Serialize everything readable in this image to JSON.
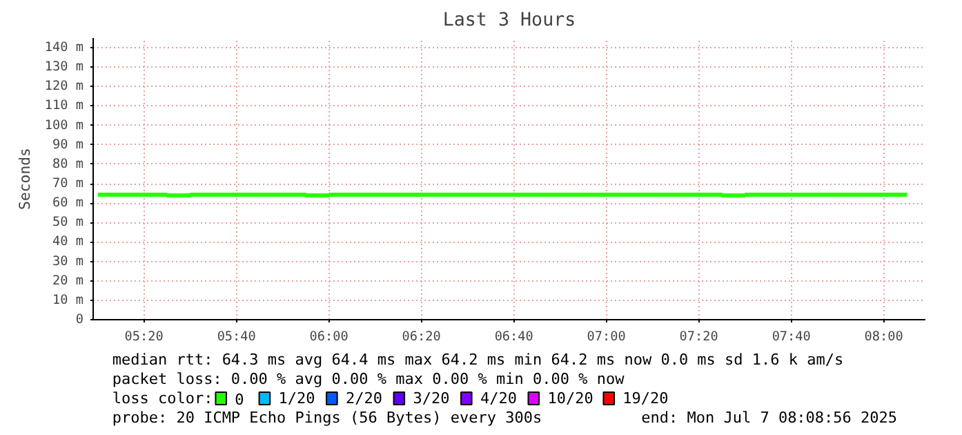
{
  "chart_data": {
    "type": "step",
    "title": "Last 3 Hours",
    "ylabel": "Seconds",
    "x": [
      5.1667,
      5.25,
      5.3333,
      5.4167,
      5.5,
      5.5833,
      5.6667,
      5.75,
      5.8333,
      5.9167,
      6.0,
      6.0833,
      6.1667,
      6.25,
      6.3333,
      6.4167,
      6.5,
      6.5833,
      6.6667,
      6.75,
      6.8333,
      6.9167,
      7.0,
      7.0833,
      7.1667,
      7.25,
      7.3333,
      7.4167,
      7.5,
      7.5833,
      7.6667,
      7.75,
      7.8333,
      7.9167,
      8.0,
      8.0833
    ],
    "series": [
      {
        "name": "0",
        "color": "#26ff00",
        "values": [
          64.3,
          64.3,
          64.3,
          64.0,
          64.3,
          64.3,
          64.3,
          64.3,
          64.3,
          64.0,
          64.3,
          64.3,
          64.3,
          64.3,
          64.3,
          64.3,
          64.3,
          64.3,
          64.3,
          64.3,
          64.3,
          64.3,
          64.3,
          64.3,
          64.3,
          64.3,
          64.3,
          64.0,
          64.3,
          64.3,
          64.3,
          64.3,
          64.3,
          64.3,
          64.3,
          64.3
        ]
      },
      {
        "name": "1/20",
        "color": "#00b8ff",
        "values": [
          null,
          null,
          null,
          null,
          null,
          null,
          null,
          null,
          null,
          null,
          null,
          null,
          null,
          null,
          null,
          null,
          null,
          null,
          null,
          null,
          null,
          null,
          null,
          null,
          null,
          null,
          null,
          null,
          null,
          null,
          null,
          null,
          null,
          null,
          null,
          null
        ]
      },
      {
        "name": "2/20",
        "color": "#0059ff",
        "values": [
          null,
          null,
          null,
          null,
          null,
          null,
          null,
          null,
          null,
          null,
          null,
          null,
          null,
          null,
          null,
          null,
          null,
          null,
          null,
          null,
          null,
          null,
          null,
          null,
          null,
          null,
          null,
          null,
          null,
          null,
          null,
          null,
          null,
          null,
          null,
          null
        ]
      },
      {
        "name": "3/20",
        "color": "#5e00ff",
        "values": [
          null,
          null,
          null,
          null,
          null,
          null,
          null,
          null,
          null,
          null,
          null,
          null,
          null,
          null,
          null,
          null,
          null,
          null,
          null,
          null,
          null,
          null,
          null,
          null,
          null,
          null,
          null,
          null,
          null,
          null,
          null,
          null,
          null,
          null,
          null,
          null
        ]
      },
      {
        "name": "4/20",
        "color": "#7e00ff",
        "values": [
          null,
          null,
          null,
          null,
          null,
          null,
          null,
          null,
          null,
          null,
          null,
          null,
          null,
          null,
          null,
          null,
          null,
          null,
          null,
          null,
          null,
          null,
          null,
          null,
          null,
          null,
          null,
          null,
          null,
          null,
          null,
          null,
          null,
          null,
          null,
          null
        ]
      },
      {
        "name": "10/20",
        "color": "#dd00ff",
        "values": [
          null,
          null,
          null,
          null,
          null,
          null,
          null,
          null,
          null,
          null,
          null,
          null,
          null,
          null,
          null,
          null,
          null,
          null,
          null,
          null,
          null,
          null,
          null,
          null,
          null,
          null,
          null,
          null,
          null,
          null,
          null,
          null,
          null,
          null,
          null,
          null
        ]
      },
      {
        "name": "19/20",
        "color": "#ff0000",
        "values": [
          null,
          null,
          null,
          null,
          null,
          null,
          null,
          null,
          null,
          null,
          null,
          null,
          null,
          null,
          null,
          null,
          null,
          null,
          null,
          null,
          null,
          null,
          null,
          null,
          null,
          null,
          null,
          null,
          null,
          null,
          null,
          null,
          null,
          null,
          null,
          null
        ]
      }
    ],
    "xlim": [
      5.15,
      8.15
    ],
    "xticks": [
      {
        "value": 5.3333,
        "label": "05:20"
      },
      {
        "value": 5.6667,
        "label": "05:40"
      },
      {
        "value": 6.0,
        "label": "06:00"
      },
      {
        "value": 6.3333,
        "label": "06:20"
      },
      {
        "value": 6.6667,
        "label": "06:40"
      },
      {
        "value": 7.0,
        "label": "07:00"
      },
      {
        "value": 7.3333,
        "label": "07:20"
      },
      {
        "value": 7.6667,
        "label": "07:40"
      },
      {
        "value": 8.0,
        "label": "08:00"
      }
    ],
    "ylim": [
      0,
      145
    ],
    "yticks": [
      0,
      {
        "value": 10,
        "label": "10 m"
      },
      {
        "value": 20,
        "label": "20 m"
      },
      {
        "value": 30,
        "label": "30 m"
      },
      {
        "value": 40,
        "label": "40 m"
      },
      {
        "value": 50,
        "label": "50 m"
      },
      {
        "value": 60,
        "label": "60 m"
      },
      {
        "value": 70,
        "label": "70 m"
      },
      {
        "value": 80,
        "label": "80 m"
      },
      {
        "value": 90,
        "label": "90 m"
      },
      {
        "value": 100,
        "label": "100 m"
      },
      {
        "value": 110,
        "label": "110 m"
      },
      {
        "value": 120,
        "label": "120 m"
      },
      {
        "value": 130,
        "label": "130 m"
      },
      {
        "value": 140,
        "label": "140 m"
      }
    ],
    "grid": true,
    "legend": "bottom",
    "legend_title": "loss color:",
    "annotations": [
      "median rtt:  64.3 ms avg  64.4 ms max  64.2 ms min  64.2 ms now  0.0 ms sd  1.6 k am/s",
      "packet loss: 0.00 % avg  0.00 % max  0.00 % min  0.00 % now",
      "probe:       20 ICMP Echo Pings (56 Bytes) every 300s",
      "end: Mon Jul  7 08:08:56 2025"
    ]
  }
}
